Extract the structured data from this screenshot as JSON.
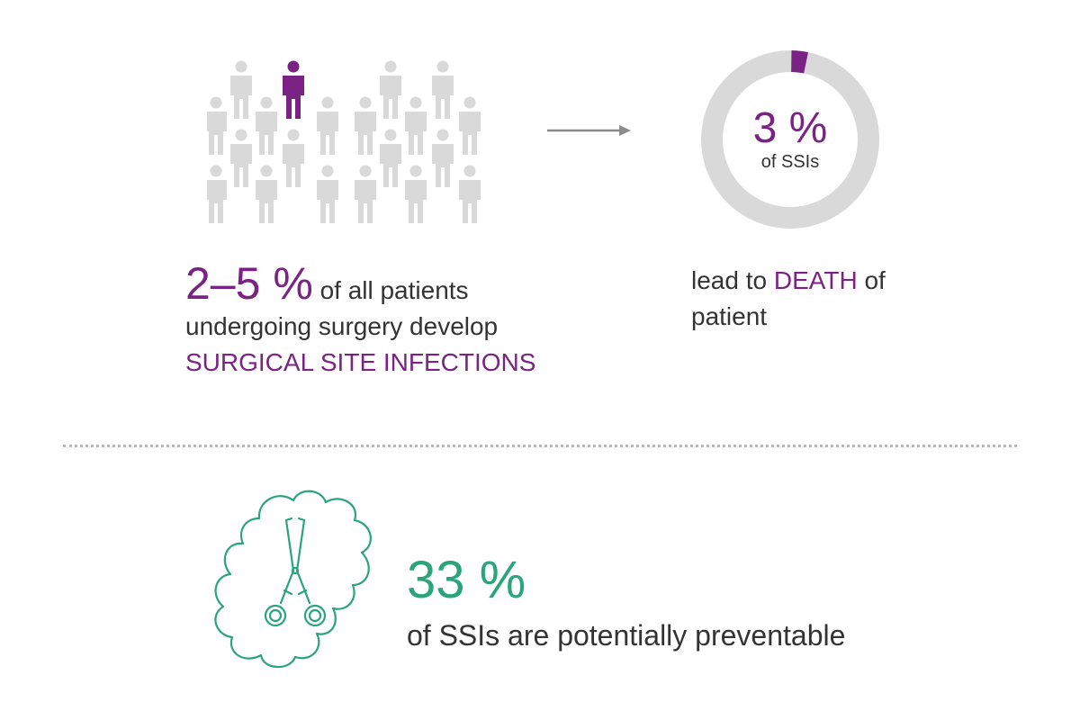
{
  "colors": {
    "purple": "#7a2384",
    "green": "#2aa57a",
    "grey": "#d9d9d9",
    "text": "#333333"
  },
  "icons": [
    "person-icon",
    "arrow-right-icon",
    "donut-chart",
    "surgical-clamp-icon",
    "cloud-icon"
  ],
  "infections": {
    "percent": "2–5 %",
    "line1": "of all patients",
    "line2": "undergoing surgery develop",
    "highlight": "SURGICAL SITE INFECTIONS",
    "people_highlighted": 1,
    "people_total": 30
  },
  "deaths": {
    "percent": "3 %",
    "label": "of SSIs",
    "share": 0.03,
    "text_before": "lead to ",
    "highlight": "DEATH",
    "text_after": " of",
    "text_line2": "patient"
  },
  "preventable": {
    "percent": "33 %",
    "desc": "of SSIs are potentially preventable"
  }
}
